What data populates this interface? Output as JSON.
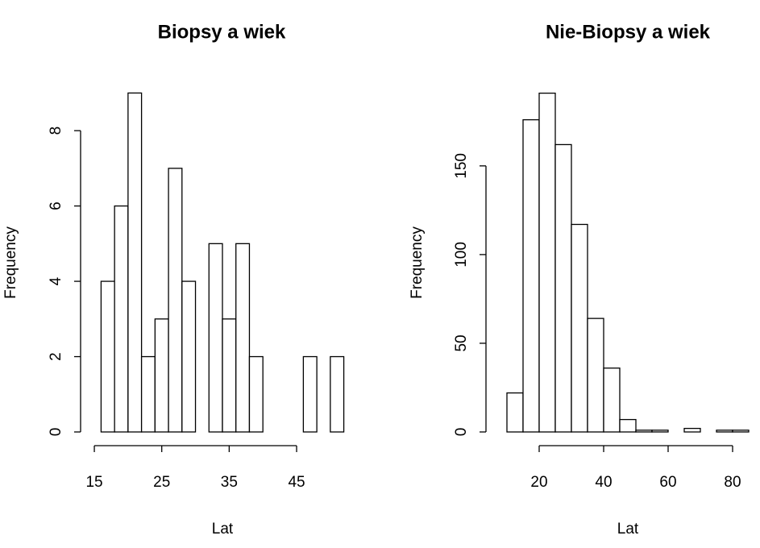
{
  "chart_data": [
    {
      "type": "histogram",
      "title": "Biopsy a wiek",
      "x_label": "Lat",
      "y_label": "Frequency",
      "bins": [
        16,
        18,
        20,
        22,
        24,
        26,
        28,
        30,
        32,
        34,
        36,
        38,
        40,
        42,
        44,
        46,
        48,
        50,
        52
      ],
      "values": [
        4,
        6,
        9,
        2,
        3,
        7,
        4,
        0,
        5,
        3,
        5,
        2,
        0,
        0,
        0,
        2,
        0,
        2
      ],
      "color": "#ffffff",
      "edge_color": "#000000",
      "xlim": [
        14.6,
        53.4
      ],
      "xticks": [
        15,
        25,
        35,
        45
      ],
      "ylim": [
        0,
        9
      ],
      "yticks": [
        0,
        2,
        4,
        6,
        8
      ]
    },
    {
      "type": "histogram",
      "title": "Nie-Biopsy a wiek",
      "x_label": "Lat",
      "y_label": "Frequency",
      "bins": [
        10,
        15,
        20,
        25,
        30,
        35,
        40,
        45,
        50,
        55,
        60,
        65,
        70,
        75,
        80,
        85
      ],
      "values": [
        22,
        176,
        191,
        162,
        117,
        64,
        36,
        7,
        1,
        1,
        0,
        2,
        0,
        1,
        1
      ],
      "color": "#ffffff",
      "edge_color": "#000000",
      "xlim": [
        7,
        88
      ],
      "xticks": [
        20,
        40,
        60,
        80
      ],
      "ylim": [
        0,
        191
      ],
      "yticks": [
        0,
        50,
        100,
        150
      ]
    }
  ]
}
